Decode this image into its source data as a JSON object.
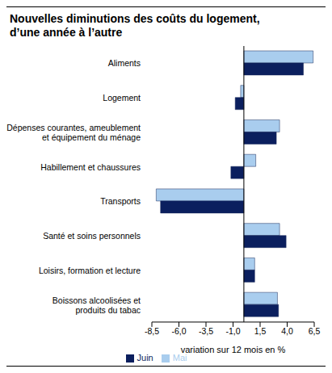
{
  "chart_data": {
    "type": "bar",
    "orientation": "horizontal",
    "title": "Nouvelles diminutions des coûts du logement, d’une année à l’autre",
    "x_label": "variation sur 12 mois en %",
    "categories": [
      "Aliments",
      "Logement",
      "Dépenses courantes, ameublement et équipement du ménage",
      "Habillement et chaussures",
      "Transports",
      "Santé et soins personnels",
      "Loisirs, formation et lecture",
      "Boissons alcoolisées et produits du tabac"
    ],
    "series": [
      {
        "name": "Mai",
        "color": "#a9cdee",
        "values": [
          6.4,
          -0.3,
          3.3,
          1.1,
          -8.1,
          3.3,
          1.0,
          3.1
        ]
      },
      {
        "name": "Juin",
        "color": "#0b1f5e",
        "values": [
          5.5,
          -0.8,
          3.0,
          -1.2,
          -7.7,
          3.9,
          1.0,
          3.2
        ]
      }
    ],
    "xlim": [
      -8.5,
      6.5
    ],
    "xticks": [
      {
        "value": -8.5,
        "label": "-8,5"
      },
      {
        "value": -6.0,
        "label": "-6,0"
      },
      {
        "value": -3.5,
        "label": "-3,5"
      },
      {
        "value": -1.0,
        "label": "-1,0"
      },
      {
        "value": 1.5,
        "label": "1,5"
      },
      {
        "value": 4.0,
        "label": "4,0"
      },
      {
        "value": 6.5,
        "label": "6,5"
      }
    ],
    "legend": "bottom",
    "grid": false
  }
}
